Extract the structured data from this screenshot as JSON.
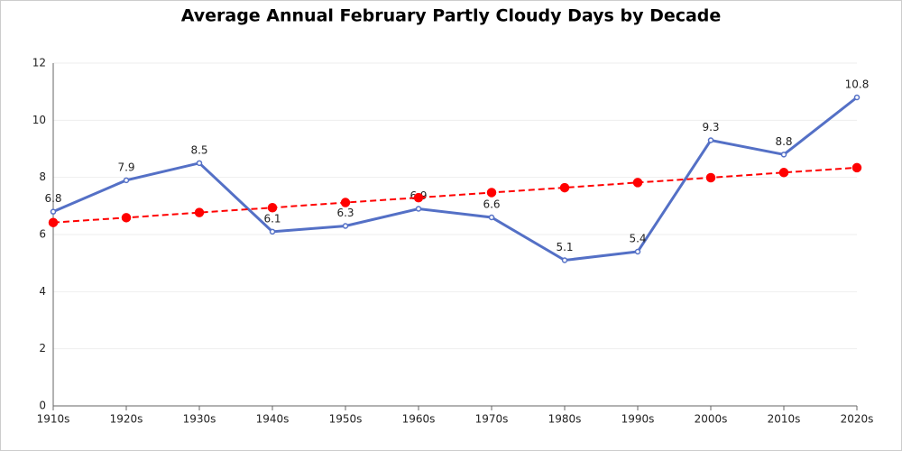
{
  "chart_data": {
    "type": "line",
    "title": "Average Annual February Partly Cloudy Days by Decade",
    "categories": [
      "1910s",
      "1920s",
      "1930s",
      "1940s",
      "1950s",
      "1960s",
      "1970s",
      "1980s",
      "1990s",
      "2000s",
      "2010s",
      "2020s"
    ],
    "series": [
      {
        "color": "#5470c6",
        "values": [
          6.8,
          7.9,
          8.5,
          6.1,
          6.3,
          6.9,
          6.6,
          5.1,
          5.4,
          9.3,
          8.8,
          10.8
        ],
        "data_labels": true,
        "line_style": "solid"
      },
      {
        "color": "#ff0000",
        "values": [
          6.42,
          6.59,
          6.77,
          6.94,
          7.12,
          7.29,
          7.47,
          7.64,
          7.82,
          7.99,
          8.17,
          8.34
        ],
        "data_labels": false,
        "line_style": "dashed"
      }
    ],
    "ylim": [
      0,
      12
    ],
    "yticks": [
      0,
      2,
      4,
      6,
      8,
      10,
      12
    ],
    "grid": true
  }
}
